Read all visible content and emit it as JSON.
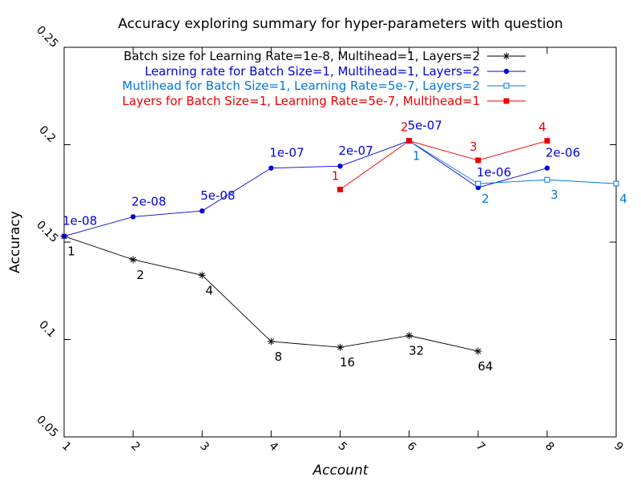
{
  "chart_data": {
    "type": "line",
    "title": "Accuracy exploring summary for hyper-parameters with question",
    "xlabel": "Account",
    "ylabel": "Accuracy",
    "xlim": [
      1,
      9
    ],
    "ylim": [
      0.05,
      0.25
    ],
    "xticks": [
      "1",
      "2",
      "3",
      "4",
      "5",
      "6",
      "7",
      "8",
      "9"
    ],
    "yticks": [
      "0.05",
      "0.1",
      "0.15",
      "0.2",
      "0.25"
    ],
    "grid": false,
    "legend_position": "top",
    "series": [
      {
        "name": "Batch size for Learning Rate=1e-8, Multihead=1, Layers=2",
        "color": "#000000",
        "marker": "asterisk",
        "x": [
          1,
          2,
          3,
          4,
          5,
          6,
          7
        ],
        "y": [
          0.153,
          0.141,
          0.133,
          0.099,
          0.096,
          0.102,
          0.094
        ],
        "labels": [
          "1",
          "2",
          "4",
          "8",
          "16",
          "32",
          "64"
        ]
      },
      {
        "name": "Learning rate for       Batch Size=1, Multihead=1, Layers=2",
        "color": "#0000dd",
        "marker": "dot",
        "x": [
          1,
          2,
          3,
          4,
          5,
          6,
          7,
          8
        ],
        "y": [
          0.153,
          0.163,
          0.166,
          0.188,
          0.189,
          0.202,
          0.178,
          0.188
        ],
        "labels": [
          "1e-08",
          "2e-08",
          "5e-08",
          "1e-07",
          "2e-07",
          "5e-07",
          "1e-06",
          "2e-06"
        ]
      },
      {
        "name": "Mutlihead for Batch Size=1, Learning Rate=5e-7, Layers=2",
        "color": "#0077dd",
        "marker": "open-square",
        "x": [
          6,
          7,
          8,
          9
        ],
        "y": [
          0.202,
          0.18,
          0.182,
          0.18
        ],
        "labels": [
          "1",
          "2",
          "3",
          "4"
        ]
      },
      {
        "name": "Layers for Batch Size=1, Learning Rate=5e-7, Multihead=1",
        "color": "#ee0000",
        "marker": "filled-square",
        "x": [
          5,
          6,
          7,
          8
        ],
        "y": [
          0.177,
          0.202,
          0.192,
          0.202
        ],
        "labels": [
          "1",
          "2",
          "3",
          "4"
        ]
      }
    ]
  }
}
